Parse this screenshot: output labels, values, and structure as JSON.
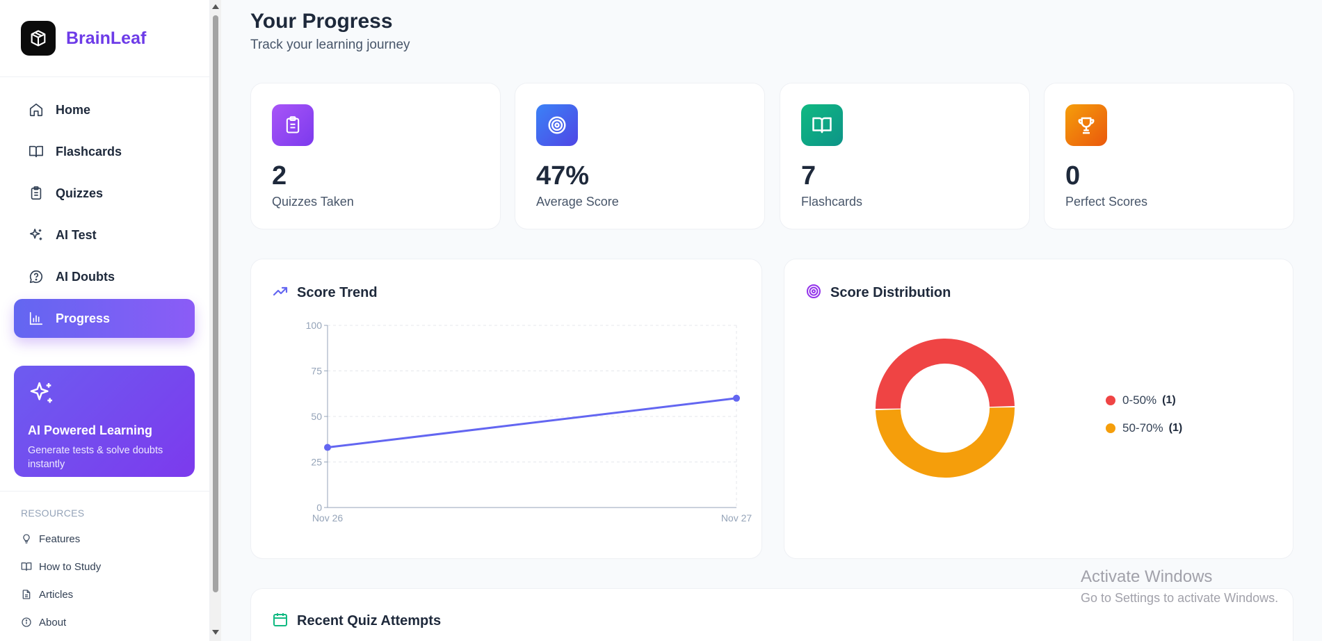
{
  "brand": {
    "name": "BrainLeaf",
    "logo_icon": "cube-icon"
  },
  "nav": {
    "items": [
      {
        "label": "Home",
        "icon": "home-icon",
        "active": false
      },
      {
        "label": "Flashcards",
        "icon": "book-icon",
        "active": false
      },
      {
        "label": "Quizzes",
        "icon": "clipboard-icon",
        "active": false
      },
      {
        "label": "AI Test",
        "icon": "sparkles-icon",
        "active": false
      },
      {
        "label": "AI Doubts",
        "icon": "chat-help-icon",
        "active": false
      },
      {
        "label": "Progress",
        "icon": "bar-chart-icon",
        "active": true
      }
    ]
  },
  "promo": {
    "title": "AI Powered Learning",
    "description": "Generate tests & solve doubts instantly",
    "icon": "sparkles-icon"
  },
  "resources": {
    "heading": "RESOURCES",
    "items": [
      {
        "label": "Features",
        "icon": "lightbulb-icon"
      },
      {
        "label": "How to Study",
        "icon": "book-icon"
      },
      {
        "label": "Articles",
        "icon": "document-icon"
      },
      {
        "label": "About",
        "icon": "info-icon"
      }
    ]
  },
  "header": {
    "title": "Your Progress",
    "subtitle": "Track your learning journey"
  },
  "stats": [
    {
      "value": "2",
      "label": "Quizzes Taken",
      "icon": "clipboard-icon",
      "color_from": "#a855f7",
      "color_to": "#7c3aed"
    },
    {
      "value": "47%",
      "label": "Average Score",
      "icon": "target-icon",
      "color_from": "#3b82f6",
      "color_to": "#4f46e5"
    },
    {
      "value": "7",
      "label": "Flashcards",
      "icon": "book-open-icon",
      "color_from": "#10b981",
      "color_to": "#0d9488"
    },
    {
      "value": "0",
      "label": "Perfect Scores",
      "icon": "trophy-icon",
      "color_from": "#f59e0b",
      "color_to": "#ea580c"
    }
  ],
  "score_trend": {
    "title": "Score Trend",
    "icon": "trending-up-icon",
    "chart_data": {
      "type": "line",
      "title": "Score Trend",
      "categories": [
        "Nov 26",
        "Nov 27"
      ],
      "values": [
        33,
        60
      ],
      "ylim": [
        0,
        100
      ],
      "yticks": [
        0,
        25,
        50,
        75,
        100
      ],
      "grid": true,
      "color": "#6366f1"
    }
  },
  "score_distribution": {
    "title": "Score Distribution",
    "icon": "target-icon",
    "chart_data": {
      "type": "pie",
      "title": "Score Distribution",
      "donut": true,
      "slices": [
        {
          "label": "0-50%",
          "value": 1,
          "count_text": "(1)",
          "color": "#ef4444"
        },
        {
          "label": "50-70%",
          "value": 1,
          "count_text": "(1)",
          "color": "#f59e0b"
        }
      ]
    }
  },
  "recent": {
    "title": "Recent Quiz Attempts",
    "icon": "calendar-icon"
  },
  "watermark": {
    "title": "Activate Windows",
    "subtitle": "Go to Settings to activate Windows."
  }
}
